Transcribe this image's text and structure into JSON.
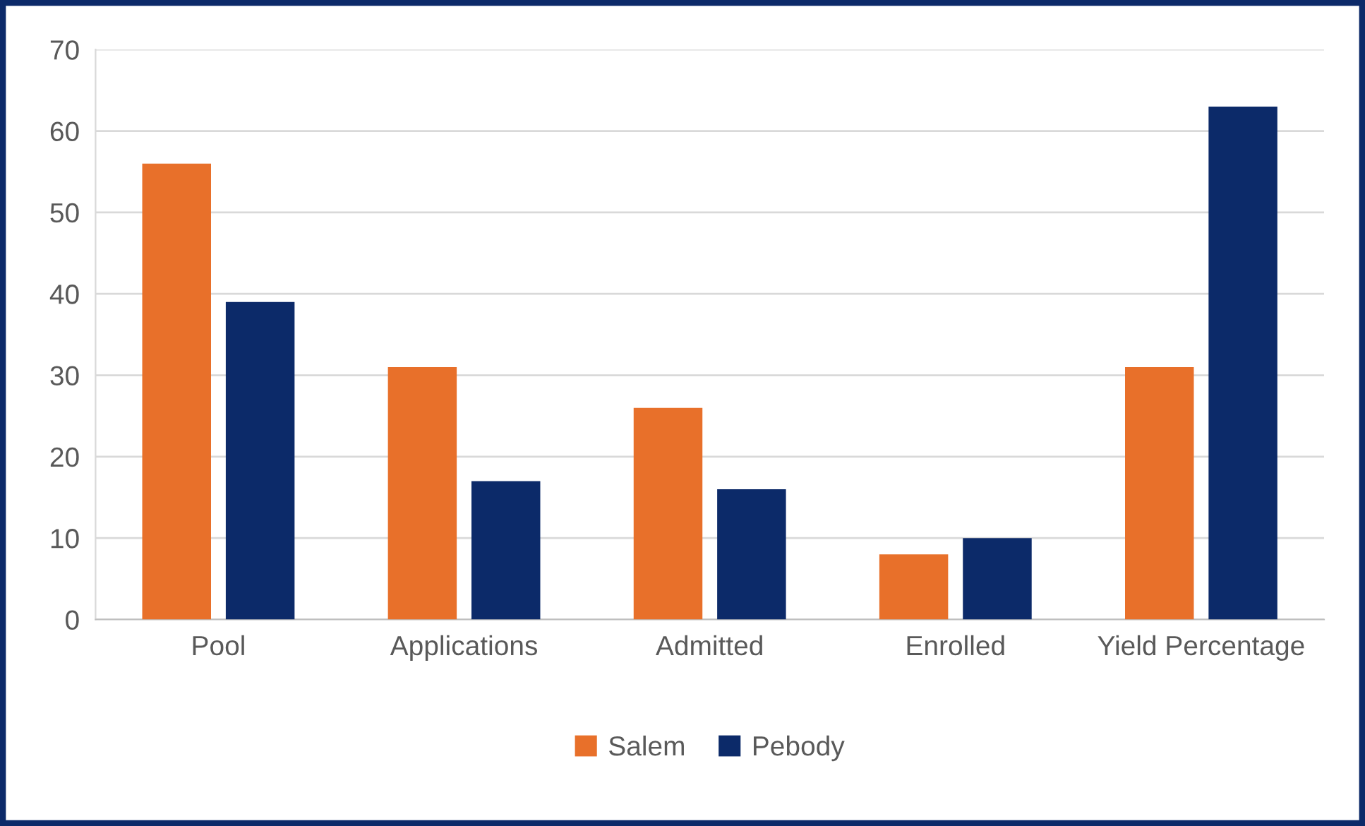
{
  "chart_data": {
    "type": "bar",
    "categories": [
      "Pool",
      "Applications",
      "Admitted",
      "Enrolled",
      "Yield Percentage"
    ],
    "series": [
      {
        "name": "Salem",
        "color": "#e8702a",
        "values": [
          56,
          31,
          26,
          8,
          31
        ]
      },
      {
        "name": "Pebody",
        "color": "#0c2a69",
        "values": [
          39,
          17,
          16,
          10,
          63
        ]
      }
    ],
    "ylim": [
      0,
      70
    ],
    "yticks": [
      0,
      10,
      20,
      30,
      40,
      50,
      60,
      70
    ],
    "grid": "y",
    "legend": "bottom"
  }
}
